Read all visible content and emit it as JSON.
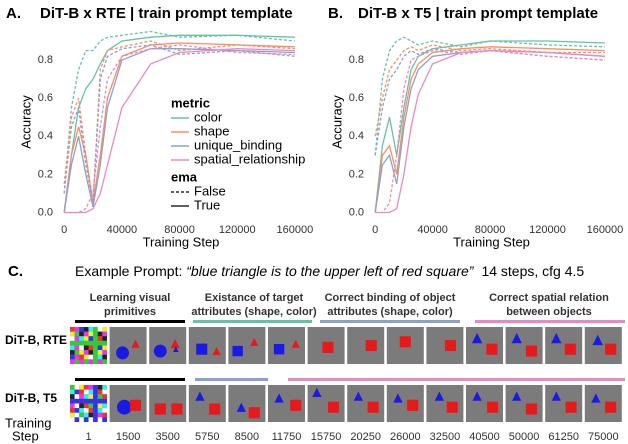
{
  "chart_data": [
    {
      "type": "line",
      "panel_label": "A.",
      "title": "DiT-B x RTE | train prompt template",
      "x_label": "Training Step",
      "y_label": "Accuracy",
      "x": [
        0,
        5000,
        10000,
        15000,
        20000,
        25000,
        30000,
        40000,
        60000,
        80000,
        120000,
        160000
      ],
      "xlim": [
        -5000,
        167000
      ],
      "ylim": [
        -0.05,
        1.0
      ],
      "xticks": [
        0,
        40000,
        80000,
        120000,
        160000
      ],
      "yticks": [
        {
          "value": 0,
          "label": "0.0"
        },
        {
          "value": 0.2,
          "label": "0.2"
        },
        {
          "value": 0.4,
          "label": "0.4"
        },
        {
          "value": 0.6,
          "label": "0.6"
        },
        {
          "value": 0.8,
          "label": "0.8"
        }
      ],
      "grid": false,
      "legend": {
        "title": "metric",
        "linestyle_title": "ema",
        "linestyle_entries": [
          "False",
          "True"
        ]
      },
      "series": [
        {
          "name": "color",
          "color": "#66c2a5",
          "values_ema_false": [
            0.1,
            0.55,
            0.75,
            0.85,
            0.85,
            0.9,
            0.92,
            0.93,
            0.95,
            0.92,
            0.93,
            0.9
          ],
          "values_ema_true": [
            0,
            0.3,
            0.55,
            0.65,
            0.7,
            0.78,
            0.85,
            0.9,
            0.92,
            0.93,
            0.93,
            0.92
          ]
        },
        {
          "name": "shape",
          "color": "#fc8d62",
          "values_ema_false": [
            0.15,
            0.5,
            0.6,
            0.3,
            0.05,
            0.75,
            0.85,
            0.87,
            0.9,
            0.85,
            0.88,
            0.86
          ],
          "values_ema_true": [
            0,
            0.3,
            0.45,
            0.3,
            0.05,
            0.3,
            0.6,
            0.82,
            0.88,
            0.89,
            0.88,
            0.87
          ]
        },
        {
          "name": "unique_binding",
          "color": "#8da0cb",
          "values_ema_false": [
            0.1,
            0.45,
            0.55,
            0.25,
            0.05,
            0.7,
            0.82,
            0.86,
            0.88,
            0.83,
            0.85,
            0.82
          ],
          "values_ema_true": [
            0,
            0.25,
            0.4,
            0.2,
            0.03,
            0.25,
            0.55,
            0.8,
            0.86,
            0.86,
            0.85,
            0.84
          ]
        },
        {
          "name": "spatial_relationship",
          "color": "#e78ac3",
          "values_ema_false": [
            0,
            0,
            0,
            0.02,
            0.1,
            0.45,
            0.7,
            0.82,
            0.86,
            0.88,
            0.84,
            0.83
          ],
          "values_ema_true": [
            0,
            0,
            0,
            0,
            0.02,
            0.1,
            0.25,
            0.55,
            0.78,
            0.84,
            0.86,
            0.85
          ]
        }
      ]
    },
    {
      "type": "line",
      "panel_label": "B.",
      "title": "DiT-B x T5 | train prompt template",
      "x_label": "Training Step",
      "y_label": "Accuracy",
      "x": [
        0,
        5000,
        10000,
        15000,
        20000,
        25000,
        30000,
        40000,
        60000,
        80000,
        120000,
        160000
      ],
      "xlim": [
        -5000,
        167000
      ],
      "ylim": [
        -0.05,
        1.0
      ],
      "xticks": [
        0,
        40000,
        80000,
        120000,
        160000
      ],
      "yticks": [
        {
          "value": 0,
          "label": "0.0"
        },
        {
          "value": 0.2,
          "label": "0.2"
        },
        {
          "value": 0.4,
          "label": "0.4"
        },
        {
          "value": 0.6,
          "label": "0.6"
        },
        {
          "value": 0.8,
          "label": "0.8"
        }
      ],
      "grid": false,
      "series": [
        {
          "name": "color",
          "color": "#66c2a5",
          "values_ema_false": [
            0.3,
            0.7,
            0.85,
            0.9,
            0.92,
            0.9,
            0.88,
            0.9,
            0.87,
            0.9,
            0.88,
            0.87
          ],
          "values_ema_true": [
            0,
            0.35,
            0.5,
            0.3,
            0.55,
            0.75,
            0.82,
            0.86,
            0.88,
            0.9,
            0.9,
            0.89
          ]
        },
        {
          "name": "shape",
          "color": "#fc8d62",
          "values_ema_false": [
            0.4,
            0.6,
            0.75,
            0.8,
            0.85,
            0.87,
            0.85,
            0.88,
            0.85,
            0.86,
            0.84,
            0.84
          ],
          "values_ema_true": [
            0,
            0.3,
            0.35,
            0.2,
            0.5,
            0.7,
            0.78,
            0.84,
            0.86,
            0.87,
            0.86,
            0.85
          ]
        },
        {
          "name": "unique_binding",
          "color": "#8da0cb",
          "values_ema_false": [
            0.3,
            0.55,
            0.7,
            0.75,
            0.82,
            0.85,
            0.83,
            0.86,
            0.84,
            0.85,
            0.82,
            0.8
          ],
          "values_ema_true": [
            0,
            0.25,
            0.3,
            0.15,
            0.45,
            0.65,
            0.75,
            0.82,
            0.84,
            0.85,
            0.84,
            0.82
          ]
        },
        {
          "name": "spatial_relationship",
          "color": "#e78ac3",
          "values_ema_false": [
            0,
            0,
            0.05,
            0.3,
            0.65,
            0.8,
            0.82,
            0.85,
            0.83,
            0.85,
            0.82,
            0.8
          ],
          "values_ema_true": [
            0,
            0,
            0,
            0.02,
            0.2,
            0.45,
            0.62,
            0.78,
            0.84,
            0.85,
            0.84,
            0.82
          ]
        }
      ]
    }
  ],
  "panel_c": {
    "panel_label": "C.",
    "caption_label": "Example Prompt: ",
    "prompt": "“blue triangle is to the upper left of red square”",
    "settings": "14 steps, cfg 4.5",
    "stages": [
      {
        "lines": [
          "Learning visual",
          "primitives"
        ],
        "color": "#000000"
      },
      {
        "lines": [
          "Existance of target",
          "attributes (shape, color)"
        ],
        "color": "#66c2a5"
      },
      {
        "lines": [
          "Correct binding of object",
          "attributes (shape, color)"
        ],
        "color": "#8da0cb"
      },
      {
        "lines": [
          "Correct spatial relation",
          "between objects"
        ],
        "color": "#e78ac3"
      }
    ],
    "rows": [
      "DiT-B, RTE",
      "DiT-B, T5"
    ],
    "step_label_top": "Training",
    "step_label_bottom": "Step",
    "steps": [
      1,
      1500,
      3500,
      5750,
      8500,
      11750,
      15750,
      20250,
      26000,
      32500,
      40500,
      50000,
      61250,
      75000
    ]
  }
}
